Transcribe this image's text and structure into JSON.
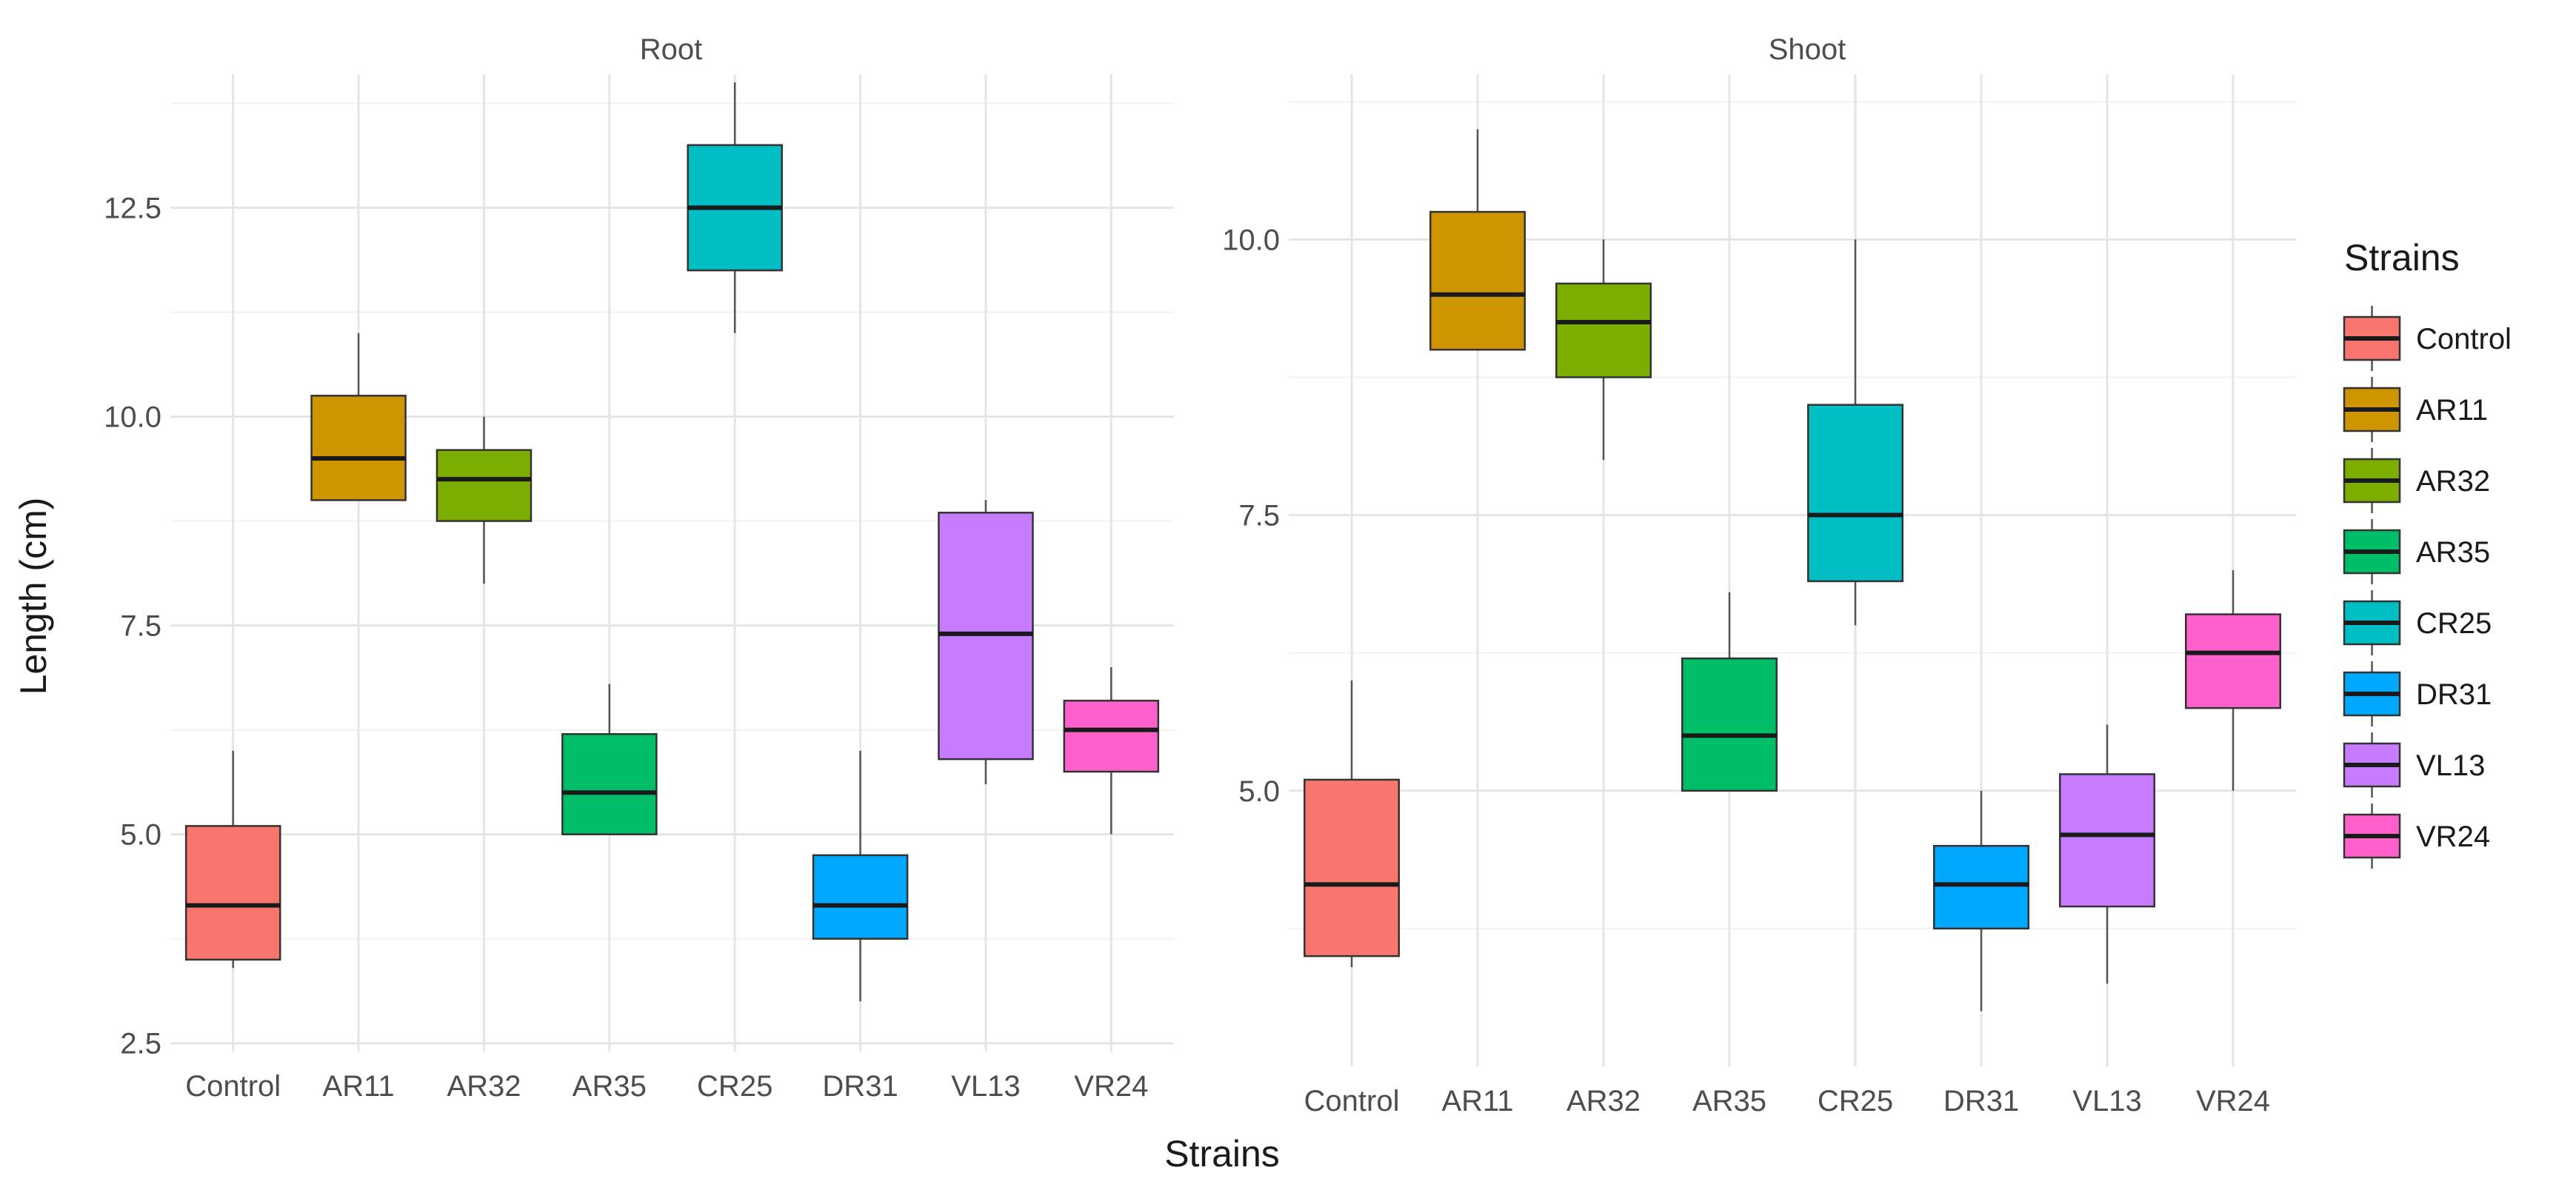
{
  "chart_data": {
    "type": "boxplot",
    "xlabel": "Strains",
    "ylabel": "Length (cm)",
    "categories": [
      "Control",
      "AR11",
      "AR32",
      "AR35",
      "CR25",
      "DR31",
      "VL13",
      "VR24"
    ],
    "colors": {
      "Control": "#F8766D",
      "AR11": "#CD9600",
      "AR32": "#7CAE00",
      "AR35": "#00BE67",
      "CR25": "#00BFC4",
      "DR31": "#00A9FF",
      "VL13": "#C77CFF",
      "VR24": "#FF61CC"
    },
    "legend": {
      "title": "Strains",
      "position": "right",
      "entries": [
        "Control",
        "AR11",
        "AR32",
        "AR35",
        "CR25",
        "DR31",
        "VL13",
        "VR24"
      ]
    },
    "grid": true,
    "facets": [
      {
        "title": "Root",
        "ylim": [
          2.4,
          14.1
        ],
        "yticks": [
          2.5,
          5.0,
          7.5,
          10.0,
          12.5
        ],
        "ytick_labels": [
          "2.5",
          "5.0",
          "7.5",
          "10.0",
          "12.5"
        ],
        "boxes": [
          {
            "category": "Control",
            "min": 3.4,
            "q1": 3.5,
            "median": 4.15,
            "q3": 5.1,
            "max": 6.0
          },
          {
            "category": "AR11",
            "min": 9.0,
            "q1": 9.0,
            "median": 9.5,
            "q3": 10.25,
            "max": 11.0
          },
          {
            "category": "AR32",
            "min": 8.0,
            "q1": 8.75,
            "median": 9.25,
            "q3": 9.6,
            "max": 10.0
          },
          {
            "category": "AR35",
            "min": 5.0,
            "q1": 5.0,
            "median": 5.5,
            "q3": 6.2,
            "max": 6.8
          },
          {
            "category": "CR25",
            "min": 11.0,
            "q1": 11.75,
            "median": 12.5,
            "q3": 13.25,
            "max": 14.0
          },
          {
            "category": "DR31",
            "min": 3.0,
            "q1": 3.75,
            "median": 4.15,
            "q3": 4.75,
            "max": 6.0
          },
          {
            "category": "VL13",
            "min": 5.6,
            "q1": 5.9,
            "median": 7.4,
            "q3": 8.85,
            "max": 9.0
          },
          {
            "category": "VR24",
            "min": 5.0,
            "q1": 5.75,
            "median": 6.25,
            "q3": 6.6,
            "max": 7.0
          }
        ]
      },
      {
        "title": "Shoot",
        "ylim": [
          2.5,
          11.5
        ],
        "yticks": [
          5.0,
          7.5,
          10.0
        ],
        "ytick_labels": [
          "5.0",
          "7.5",
          "10.0"
        ],
        "boxes": [
          {
            "category": "Control",
            "min": 3.4,
            "q1": 3.5,
            "median": 4.15,
            "q3": 5.1,
            "max": 6.0
          },
          {
            "category": "AR11",
            "min": 9.0,
            "q1": 9.0,
            "median": 9.5,
            "q3": 10.25,
            "max": 11.0
          },
          {
            "category": "AR32",
            "min": 8.0,
            "q1": 8.75,
            "median": 9.25,
            "q3": 9.6,
            "max": 10.0
          },
          {
            "category": "AR35",
            "min": 5.0,
            "q1": 5.0,
            "median": 5.5,
            "q3": 6.2,
            "max": 6.8
          },
          {
            "category": "CR25",
            "min": 6.5,
            "q1": 6.9,
            "median": 7.5,
            "q3": 8.5,
            "max": 10.0
          },
          {
            "category": "DR31",
            "min": 3.0,
            "q1": 3.75,
            "median": 4.15,
            "q3": 4.5,
            "max": 5.0
          },
          {
            "category": "VL13",
            "min": 3.25,
            "q1": 3.95,
            "median": 4.6,
            "q3": 5.15,
            "max": 5.6
          },
          {
            "category": "VR24",
            "min": 5.0,
            "q1": 5.75,
            "median": 6.25,
            "q3": 6.6,
            "max": 7.0
          }
        ]
      }
    ]
  }
}
